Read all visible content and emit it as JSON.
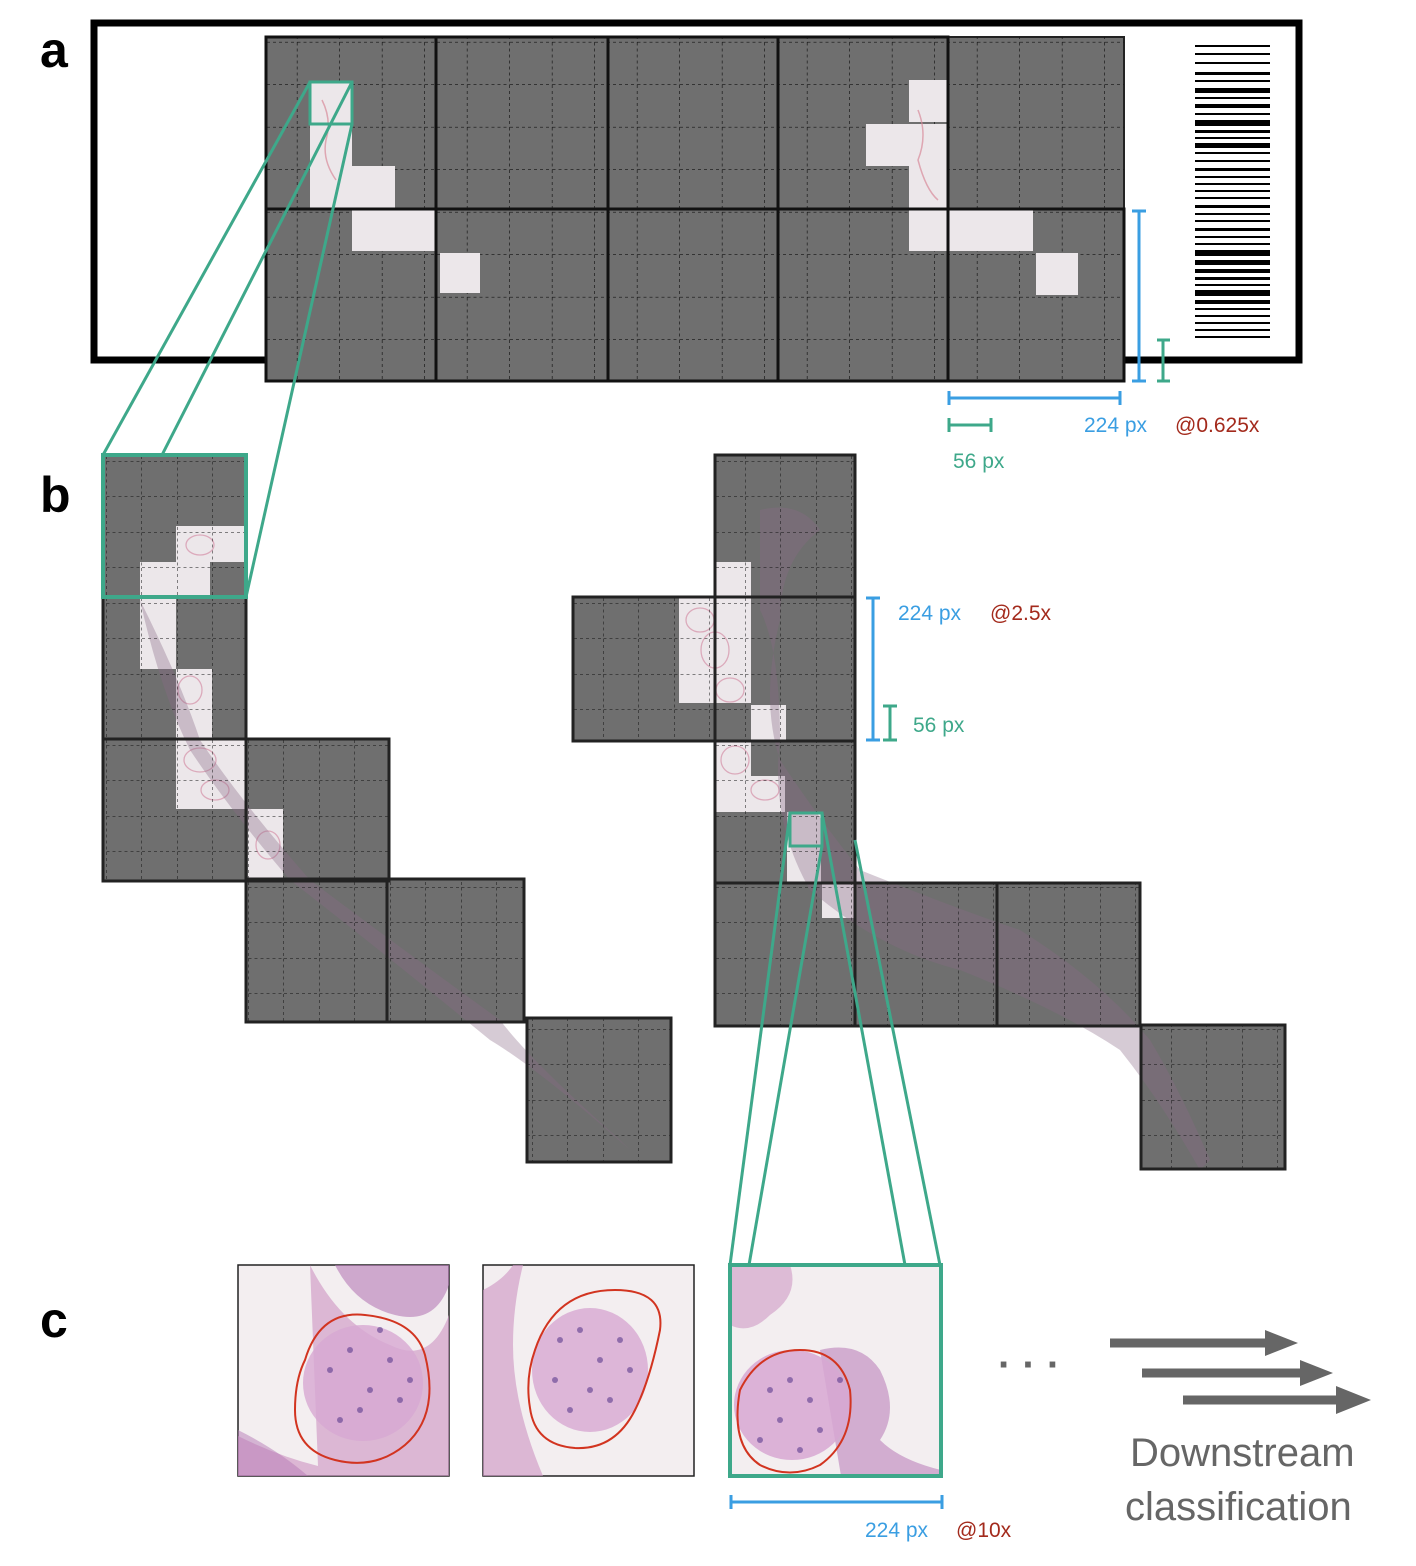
{
  "panels": {
    "a": "a",
    "b": "b",
    "c": "c"
  },
  "panel_a": {
    "px_224": "224 px",
    "px_56": "56 px",
    "magnification": "@0.625x"
  },
  "panel_b": {
    "px_224": "224 px",
    "px_56": "56 px",
    "magnification": "@2.5x"
  },
  "panel_c": {
    "px_224": "224 px",
    "magnification": "@10x",
    "ellipsis": "· · ·",
    "downstream_line1": "Downstream",
    "downstream_line2": "classification"
  },
  "colors": {
    "tile_grey": "#6f6f6f",
    "tissue_light": "#ece7ea",
    "scale_blue": "#3a9ee2",
    "zoom_green": "#3ea88a",
    "mag_red": "#a32a1c",
    "arrow_grey": "#666666"
  }
}
